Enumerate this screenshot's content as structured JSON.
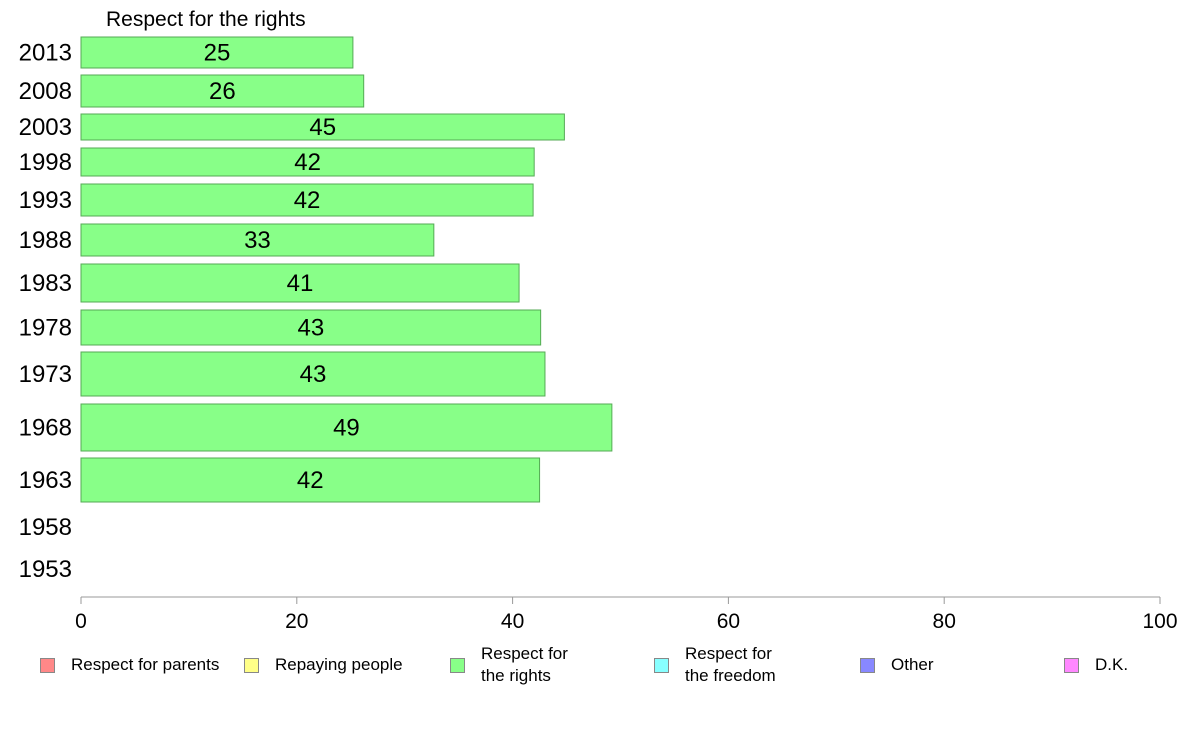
{
  "chart_data": {
    "type": "bar",
    "orientation": "horizontal",
    "title": "Respect for the rights",
    "categories": [
      "2013",
      "2008",
      "2003",
      "1998",
      "1993",
      "1988",
      "1983",
      "1978",
      "1973",
      "1968",
      "1963",
      "1958",
      "1953"
    ],
    "values": [
      25.2,
      26.2,
      44.8,
      42.0,
      41.9,
      32.7,
      40.6,
      42.6,
      43.0,
      49.2,
      42.5,
      null,
      null
    ],
    "data_labels": [
      "25",
      "26",
      "45",
      "42",
      "42",
      "33",
      "41",
      "43",
      "43",
      "49",
      "42",
      "",
      ""
    ],
    "xlim": [
      0,
      100
    ],
    "x_ticks": [
      "0",
      "20",
      "40",
      "60",
      "80",
      "100"
    ],
    "bar_color": "#88ff88",
    "bar_border_color": "#55aa55",
    "legend_position": "bottom",
    "legend": [
      {
        "lines": [
          "Respect for parents"
        ],
        "color": "#ff8888"
      },
      {
        "lines": [
          "Repaying people"
        ],
        "color": "#ffff88"
      },
      {
        "lines": [
          "Respect for",
          "the rights"
        ],
        "color": "#88ff88"
      },
      {
        "lines": [
          "Respect for",
          "the freedom"
        ],
        "color": "#88ffff"
      },
      {
        "lines": [
          "Other"
        ],
        "color": "#8888ff"
      },
      {
        "lines": [
          "D.K."
        ],
        "color": "#ff88ff"
      }
    ]
  }
}
